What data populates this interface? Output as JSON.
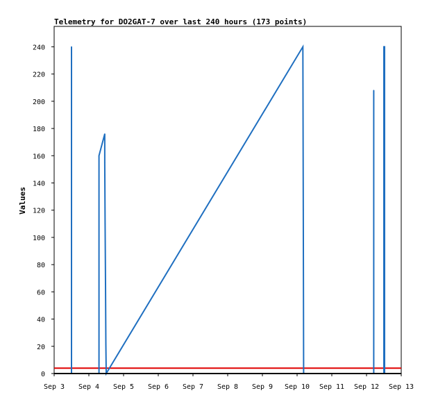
{
  "chart_data": {
    "type": "line",
    "title": "Telemetry for DO2GAT-7 over last 240 hours (173 points)",
    "xlabel": "",
    "ylabel": "Values",
    "x_ticks": [
      "Sep 3",
      "Sep 4",
      "Sep 5",
      "Sep 6",
      "Sep 7",
      "Sep 8",
      "Sep 9",
      "Sep 10",
      "Sep 11",
      "Sep 12",
      "Sep 13"
    ],
    "xlim": [
      "Sep 3 00:00",
      "Sep 13 00:00"
    ],
    "ylim": [
      0,
      255
    ],
    "y_ticks": [
      0,
      20,
      40,
      60,
      80,
      100,
      120,
      140,
      160,
      180,
      200,
      220,
      240
    ],
    "grid": false,
    "colors": {
      "series": "#1f6fc0",
      "threshold": "#e00000",
      "axis": "#000000"
    },
    "series": [
      {
        "points": [
          [
            "Sep 3 12:00",
            0
          ],
          [
            "Sep 3 12:00",
            240
          ],
          [
            "Sep 3 12:00",
            0
          ],
          [
            "Sep 4 07:00",
            0
          ],
          [
            "Sep 4 07:00",
            160
          ],
          [
            "Sep 4 11:00",
            176
          ],
          [
            "Sep 4 11:00",
            155
          ],
          [
            "Sep 4 11:15",
            110
          ],
          [
            "Sep 4 11:30",
            66
          ],
          [
            "Sep 4 11:45",
            22
          ],
          [
            "Sep 4 12:00",
            0
          ],
          [
            "Sep 10 04:00",
            240
          ],
          [
            "Sep 10 04:15",
            120
          ],
          [
            "Sep 10 04:30",
            0
          ],
          [
            "Sep 12 05:00",
            0
          ],
          [
            "Sep 12 05:00",
            208
          ],
          [
            "Sep 12 05:00",
            0
          ],
          [
            "Sep 12 12:00",
            0
          ],
          [
            "Sep 12 12:00",
            240
          ],
          [
            "Sep 12 12:30",
            240
          ],
          [
            "Sep 12 12:30",
            0
          ]
        ]
      },
      {
        "points": [
          [
            "Sep 3 00:00",
            4
          ],
          [
            "Sep 13 00:00",
            4
          ]
        ]
      }
    ]
  }
}
